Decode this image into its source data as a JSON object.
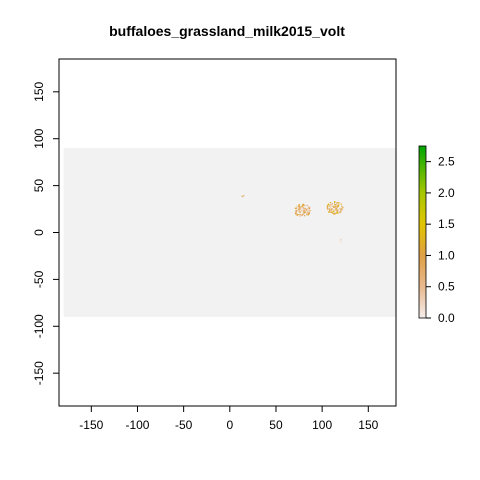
{
  "chart_data": {
    "type": "heatmap",
    "title": "buffaloes_grassland_milk2015_volt",
    "xlabel": "",
    "ylabel": "",
    "xlim": [
      -185,
      180
    ],
    "ylim": [
      -185,
      185
    ],
    "x_ticks": [
      -150,
      -100,
      -50,
      0,
      50,
      100,
      150
    ],
    "y_ticks": [
      -150,
      -100,
      -50,
      0,
      50,
      100,
      150
    ],
    "x_tick_labels": [
      "-150",
      "-100",
      "-50",
      "0",
      "50",
      "100",
      "150"
    ],
    "y_tick_labels": [
      "-150",
      "-100",
      "-50",
      "0",
      "50",
      "100",
      "150"
    ],
    "data_extent": {
      "x": [
        -180,
        180
      ],
      "y": [
        -90,
        90
      ]
    },
    "background_color": "#f2f2f2",
    "grid": false,
    "legend": {
      "placement": "right",
      "min": 0,
      "max": 2.75,
      "ticks": [
        0.0,
        0.5,
        1.0,
        1.5,
        2.0,
        2.5
      ],
      "tick_labels": [
        "0.0",
        "0.5",
        "1.0",
        "1.5",
        "2.0",
        "2.5"
      ],
      "color_stops": [
        {
          "value": 0.0,
          "color": "#f5eded"
        },
        {
          "value": 0.5,
          "color": "#e8b98e"
        },
        {
          "value": 1.0,
          "color": "#dfa045"
        },
        {
          "value": 1.5,
          "color": "#e2c500"
        },
        {
          "value": 2.0,
          "color": "#a6c700"
        },
        {
          "value": 2.75,
          "color": "#00a600"
        }
      ]
    },
    "hotspots": [
      {
        "name": "south-asia-cluster",
        "x": 78,
        "y": 24,
        "value_range": [
          0.2,
          1.2
        ]
      },
      {
        "name": "east-asia-cluster",
        "x": 113,
        "y": 27,
        "value_range": [
          0.2,
          1.6
        ]
      },
      {
        "name": "middle-east-speck",
        "x": 14,
        "y": 40,
        "value_range": [
          0.5,
          1.0
        ]
      },
      {
        "name": "southeast-asia-speck",
        "x": 120,
        "y": -8,
        "value_range": [
          0.1,
          0.3
        ]
      }
    ]
  }
}
